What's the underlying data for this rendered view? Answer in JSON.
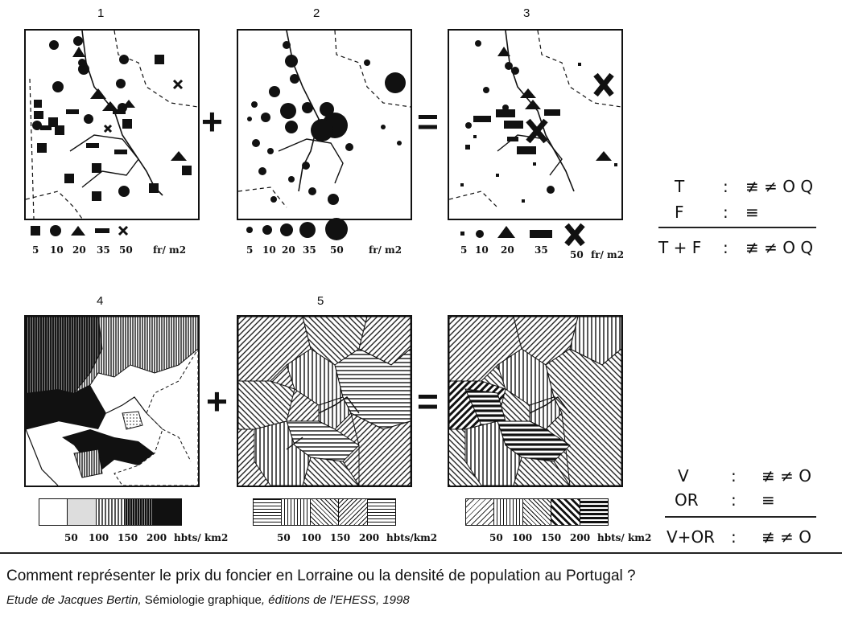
{
  "panels": {
    "top": [
      "1",
      "2",
      "3"
    ],
    "bottom": [
      "4",
      "5"
    ]
  },
  "operators": {
    "plus": "+",
    "equals": "="
  },
  "legends": {
    "map1": {
      "values": [
        "5",
        "10",
        "20",
        "35",
        "50"
      ],
      "unit": "fr/ m2"
    },
    "map2": {
      "values": [
        "5",
        "10",
        "20",
        "35",
        "50"
      ],
      "unit": "fr/ m2"
    },
    "map3": {
      "values": [
        "5",
        "10",
        "20",
        "35",
        "50"
      ],
      "unit": "fr/ m2"
    },
    "map4": {
      "values": [
        "50",
        "100",
        "150",
        "200"
      ],
      "unit": "hbts/ km2"
    },
    "map5": {
      "values": [
        "50",
        "100",
        "150",
        "200"
      ],
      "unit": "hbts/km2"
    },
    "map6": {
      "values": [
        "50",
        "100",
        "150",
        "200"
      ],
      "unit": "hbts/ km2"
    }
  },
  "formulas": {
    "top": [
      {
        "var": "T",
        "sep": ":",
        "sym": "≢ ≠ O Q"
      },
      {
        "var": "F",
        "sep": ":",
        "sym": "≡"
      },
      {
        "var": "T + F",
        "sep": ":",
        "sym": "≢ ≠ O Q"
      }
    ],
    "bottom": [
      {
        "var": "V",
        "sep": ":",
        "sym": "≢ ≠ O"
      },
      {
        "var": "OR",
        "sep": ":",
        "sym": "≡"
      },
      {
        "var": "V+OR",
        "sep": ":",
        "sym": "≢ ≠ O"
      }
    ]
  },
  "caption": {
    "line1": "Comment représenter le prix du foncier en Lorraine ou la densité de population au Portugal ?",
    "author": "Etude de Jacques Bertin,",
    "book": " Sémiologie graphique",
    "publisher": ", éditions de l'EHESS, 1998"
  }
}
